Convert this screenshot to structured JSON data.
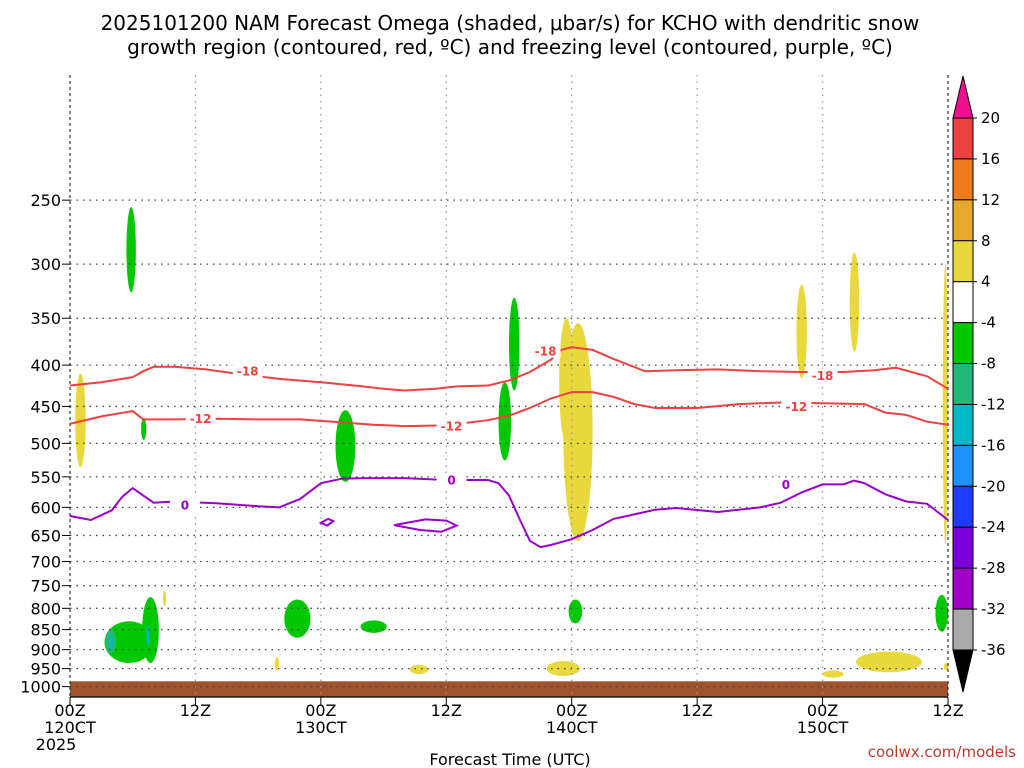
{
  "title_line1": "2025101200 NAM Forecast Omega (shaded, μbar/s) for KCHO with dendritic snow",
  "title_line2": "growth region (contoured, red, ºC) and freezing level (contoured, purple, ºC)",
  "credit": "coolwx.com/models",
  "colors": {
    "dgz_contour": "#f04040",
    "freezing_contour": "#9900cc",
    "ground": "#a0522d",
    "grid": "#999999"
  },
  "chart_data": {
    "type": "heatmap",
    "xlabel": "Forecast Time (UTC)",
    "ylabel": "",
    "xlim_hours": [
      0,
      84
    ],
    "ylim_hpa": [
      1030,
      175
    ],
    "y_scale": "log-pressure",
    "grid": true,
    "x_ticks": [
      {
        "h": 0,
        "l1": "00Z",
        "l2": "120CT",
        "l3": "2025"
      },
      {
        "h": 12,
        "l1": "12Z",
        "l2": "",
        "l3": ""
      },
      {
        "h": 24,
        "l1": "00Z",
        "l2": "130CT",
        "l3": ""
      },
      {
        "h": 36,
        "l1": "12Z",
        "l2": "",
        "l3": ""
      },
      {
        "h": 48,
        "l1": "00Z",
        "l2": "140CT",
        "l3": ""
      },
      {
        "h": 60,
        "l1": "12Z",
        "l2": "",
        "l3": ""
      },
      {
        "h": 72,
        "l1": "00Z",
        "l2": "150CT",
        "l3": ""
      },
      {
        "h": 84,
        "l1": "12Z",
        "l2": "",
        "l3": ""
      }
    ],
    "y_ticks": [
      250,
      300,
      350,
      400,
      450,
      500,
      550,
      600,
      650,
      700,
      750,
      800,
      850,
      900,
      950,
      1000
    ],
    "colorbar": {
      "labels": [
        "20",
        "16",
        "12",
        "8",
        "4",
        "-4",
        "-8",
        "-12",
        "-16",
        "-20",
        "-24",
        "-28",
        "-32",
        "-36"
      ],
      "colors": [
        "#ee1090",
        "#f04040",
        "#f07a1e",
        "#e8a82c",
        "#e8d83c",
        "#ffffff",
        "#00c800",
        "#20b878",
        "#00b8c8",
        "#1e90ff",
        "#1e3cff",
        "#7a00dc",
        "#a000c8",
        "#aaaaaa",
        "#000000"
      ]
    },
    "contours": [
      {
        "name": "dgz_minus18",
        "label": "-18",
        "color": "#f04040",
        "points": [
          [
            0,
            424
          ],
          [
            3,
            420
          ],
          [
            5,
            416
          ],
          [
            6,
            414
          ],
          [
            7,
            407
          ],
          [
            8,
            402
          ],
          [
            10,
            402
          ],
          [
            13,
            405
          ],
          [
            16,
            410
          ],
          [
            20,
            416
          ],
          [
            24,
            420
          ],
          [
            28,
            425
          ],
          [
            30,
            428
          ],
          [
            32,
            430
          ],
          [
            35,
            428
          ],
          [
            37,
            425
          ],
          [
            40,
            424
          ],
          [
            42,
            418
          ],
          [
            44,
            408
          ],
          [
            46,
            394
          ],
          [
            47,
            383
          ],
          [
            48,
            380
          ],
          [
            50,
            383
          ],
          [
            52,
            393
          ],
          [
            55,
            407
          ],
          [
            58,
            406
          ],
          [
            62,
            405
          ],
          [
            66,
            407
          ],
          [
            70,
            408
          ],
          [
            74,
            408
          ],
          [
            77,
            406
          ],
          [
            79,
            403
          ],
          [
            82,
            413
          ],
          [
            84,
            428
          ]
        ],
        "labels_at": [
          [
            17,
            407,
            "-18"
          ],
          [
            45.5,
            384,
            "-18"
          ],
          [
            72,
            412,
            "-18"
          ]
        ]
      },
      {
        "name": "dgz_minus12",
        "label": "-12",
        "color": "#f04040",
        "points": [
          [
            0,
            473
          ],
          [
            3,
            463
          ],
          [
            6,
            456
          ],
          [
            7,
            467
          ],
          [
            10,
            467
          ],
          [
            14,
            466
          ],
          [
            18,
            467
          ],
          [
            22,
            467
          ],
          [
            26,
            471
          ],
          [
            29,
            474
          ],
          [
            32,
            476
          ],
          [
            36,
            475
          ],
          [
            40,
            468
          ],
          [
            42,
            462
          ],
          [
            44,
            452
          ],
          [
            46,
            440
          ],
          [
            48,
            432
          ],
          [
            50,
            432
          ],
          [
            52,
            438
          ],
          [
            54,
            447
          ],
          [
            56,
            452
          ],
          [
            60,
            452
          ],
          [
            64,
            447
          ],
          [
            68,
            445
          ],
          [
            72,
            446
          ],
          [
            76,
            447
          ],
          [
            78,
            458
          ],
          [
            80,
            461
          ],
          [
            82,
            470
          ],
          [
            84,
            474
          ]
        ],
        "labels_at": [
          [
            12.5,
            466,
            "-12"
          ],
          [
            36.5,
            476,
            "-12"
          ],
          [
            69.5,
            450,
            "-12"
          ]
        ]
      },
      {
        "name": "freezing_0",
        "label": "0",
        "color": "#9900cc",
        "points": [
          [
            0,
            615
          ],
          [
            2,
            622
          ],
          [
            4,
            605
          ],
          [
            5,
            582
          ],
          [
            6,
            568
          ],
          [
            7,
            580
          ],
          [
            8,
            592
          ],
          [
            10,
            590
          ],
          [
            14,
            593
          ],
          [
            18,
            598
          ],
          [
            20,
            600
          ],
          [
            22,
            586
          ],
          [
            24,
            560
          ],
          [
            26,
            553
          ],
          [
            28,
            552
          ],
          [
            32,
            552
          ],
          [
            36,
            555
          ],
          [
            40,
            555
          ],
          [
            41,
            560
          ],
          [
            42,
            580
          ],
          [
            43,
            620
          ],
          [
            44,
            660
          ],
          [
            45,
            672
          ],
          [
            46,
            668
          ],
          [
            48,
            657
          ],
          [
            50,
            640
          ],
          [
            52,
            620
          ],
          [
            54,
            612
          ],
          [
            56,
            604
          ],
          [
            58,
            601
          ],
          [
            62,
            608
          ],
          [
            66,
            600
          ],
          [
            68,
            592
          ],
          [
            70,
            575
          ],
          [
            72,
            562
          ],
          [
            74,
            562
          ],
          [
            75,
            556
          ],
          [
            76,
            560
          ],
          [
            78,
            578
          ],
          [
            80,
            590
          ],
          [
            82,
            594
          ],
          [
            84,
            622
          ]
        ],
        "labels_at": [
          [
            11,
            596,
            "0"
          ],
          [
            36.5,
            555,
            "0"
          ],
          [
            68.5,
            562,
            "0"
          ]
        ]
      }
    ],
    "closed_contours": [
      {
        "name": "freezing_loop_a",
        "color": "#9900cc",
        "points": [
          [
            24,
            627
          ],
          [
            24.7,
            620
          ],
          [
            25.2,
            624
          ],
          [
            24.6,
            632
          ],
          [
            24,
            627
          ]
        ]
      },
      {
        "name": "freezing_loop_b",
        "color": "#9900cc",
        "points": [
          [
            31,
            631
          ],
          [
            34,
            621
          ],
          [
            36,
            623
          ],
          [
            37,
            632
          ],
          [
            35.5,
            643
          ],
          [
            33.5,
            640
          ],
          [
            31,
            631
          ]
        ]
      }
    ],
    "omega_areas": [
      {
        "bin": "-8 to -4",
        "color": "#00c800",
        "t_range": [
          5.4,
          6.3
        ],
        "p_range": [
          255,
          325
        ]
      },
      {
        "bin": "-8 to -4",
        "color": "#00c800",
        "t_range": [
          6.8,
          7.3
        ],
        "p_range": [
          465,
          495
        ]
      },
      {
        "bin": "-8 to -4",
        "color": "#00c800",
        "t_range": [
          25.4,
          27.3
        ],
        "p_range": [
          455,
          558
        ]
      },
      {
        "bin": "-8 to -4",
        "color": "#00c800",
        "t_range": [
          41.0,
          42.2
        ],
        "p_range": [
          420,
          525
        ]
      },
      {
        "bin": "-8 to -4",
        "color": "#00c800",
        "t_range": [
          42.0,
          43.0
        ],
        "p_range": [
          330,
          430
        ]
      },
      {
        "bin": "-8 to -4",
        "color": "#00c800",
        "t_range": [
          3.3,
          8.0
        ],
        "p_range": [
          830,
          935
        ]
      },
      {
        "bin": "-12 to -8",
        "color": "#20b878",
        "t_range": [
          3.4,
          4.4
        ],
        "p_range": [
          850,
          910
        ]
      },
      {
        "bin": "-16 to -12",
        "color": "#00b8c8",
        "t_range": [
          3.8,
          4.1
        ],
        "p_range": [
          865,
          895
        ]
      },
      {
        "bin": "-8 to -4",
        "color": "#00c800",
        "t_range": [
          6.9,
          8.5
        ],
        "p_range": [
          775,
          935
        ]
      },
      {
        "bin": "-16 to -12",
        "color": "#00b8c8",
        "t_range": [
          7.3,
          7.6
        ],
        "p_range": [
          840,
          890
        ]
      },
      {
        "bin": "-8 to -4",
        "color": "#00c800",
        "t_range": [
          20.5,
          23.0
        ],
        "p_range": [
          780,
          870
        ]
      },
      {
        "bin": "-8 to -4",
        "color": "#00c800",
        "t_range": [
          27.8,
          30.3
        ],
        "p_range": [
          828,
          858
        ]
      },
      {
        "bin": "-8 to -4",
        "color": "#00c800",
        "t_range": [
          47.7,
          49.0
        ],
        "p_range": [
          780,
          835
        ]
      },
      {
        "bin": "-8 to -4",
        "color": "#00c800",
        "t_range": [
          82.8,
          84.0
        ],
        "p_range": [
          770,
          855
        ]
      },
      {
        "bin": "4 to 8",
        "color": "#e8d83c",
        "t_range": [
          0.5,
          1.5
        ],
        "p_range": [
          410,
          535
        ]
      },
      {
        "bin": "4 to 8",
        "color": "#e8d83c",
        "t_range": [
          46.8,
          48.2
        ],
        "p_range": [
          350,
          500
        ]
      },
      {
        "bin": "4 to 8",
        "color": "#e8d83c",
        "t_range": [
          47.2,
          50.0
        ],
        "p_range": [
          355,
          660
        ]
      },
      {
        "bin": "4 to 8",
        "color": "#e8d83c",
        "t_range": [
          69.5,
          70.5
        ],
        "p_range": [
          318,
          415
        ]
      },
      {
        "bin": "4 to 8",
        "color": "#e8d83c",
        "t_range": [
          74.6,
          75.5
        ],
        "p_range": [
          290,
          385
        ]
      },
      {
        "bin": "4 to 8",
        "color": "#e8d83c",
        "t_range": [
          83.5,
          84.0
        ],
        "p_range": [
          300,
          665
        ]
      },
      {
        "bin": "4 to 8",
        "color": "#e8d83c",
        "t_range": [
          8.9,
          9.2
        ],
        "p_range": [
          760,
          795
        ]
      },
      {
        "bin": "4 to 8",
        "color": "#e8d83c",
        "t_range": [
          19.6,
          20.0
        ],
        "p_range": [
          920,
          955
        ]
      },
      {
        "bin": "4 to 8",
        "color": "#e8d83c",
        "t_range": [
          32.5,
          34.3
        ],
        "p_range": [
          940,
          965
        ]
      },
      {
        "bin": "4 to 8",
        "color": "#e8d83c",
        "t_range": [
          45.6,
          48.8
        ],
        "p_range": [
          930,
          970
        ]
      },
      {
        "bin": "4 to 8",
        "color": "#e8d83c",
        "t_range": [
          72.0,
          74.0
        ],
        "p_range": [
          955,
          975
        ]
      },
      {
        "bin": "4 to 8",
        "color": "#e8d83c",
        "t_range": [
          75.2,
          81.5
        ],
        "p_range": [
          905,
          960
        ]
      },
      {
        "bin": "4 to 8",
        "color": "#e8d83c",
        "t_range": [
          83.6,
          84.0
        ],
        "p_range": [
          935,
          955
        ]
      }
    ],
    "ground_p": 985
  }
}
